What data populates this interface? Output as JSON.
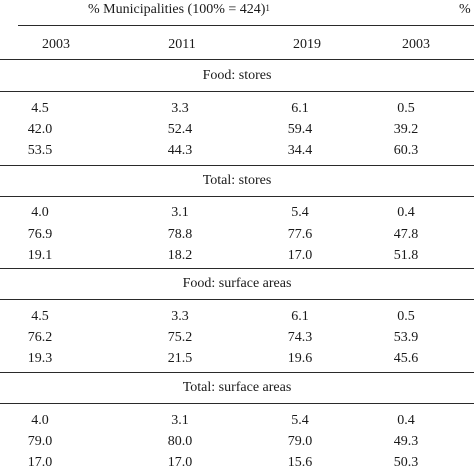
{
  "header": {
    "group_left": "% Municipalities (100% = 424)",
    "group_left_sup": "1",
    "group_right": "%"
  },
  "columns": [
    "2003",
    "2011",
    "2019",
    "2003"
  ],
  "sections": [
    {
      "title": "Food: stores",
      "rows": [
        [
          "4.5",
          "3.3",
          "6.1",
          "0.5"
        ],
        [
          "42.0",
          "52.4",
          "59.4",
          "39.2"
        ],
        [
          "53.5",
          "44.3",
          "34.4",
          "60.3"
        ]
      ]
    },
    {
      "title": "Total: stores",
      "rows": [
        [
          "4.0",
          "3.1",
          "5.4",
          "0.4"
        ],
        [
          "76.9",
          "78.8",
          "77.6",
          "47.8"
        ],
        [
          "19.1",
          "18.2",
          "17.0",
          "51.8"
        ]
      ]
    },
    {
      "title": "Food: surface areas",
      "rows": [
        [
          "4.5",
          "3.3",
          "6.1",
          "0.5"
        ],
        [
          "76.2",
          "75.2",
          "74.3",
          "53.9"
        ],
        [
          "19.3",
          "21.5",
          "19.6",
          "45.6"
        ]
      ]
    },
    {
      "title": "Total: surface areas",
      "rows": [
        [
          "4.0",
          "3.1",
          "5.4",
          "0.4"
        ],
        [
          "79.0",
          "80.0",
          "79.0",
          "49.3"
        ],
        [
          "17.0",
          "17.0",
          "15.6",
          "50.3"
        ]
      ]
    }
  ]
}
